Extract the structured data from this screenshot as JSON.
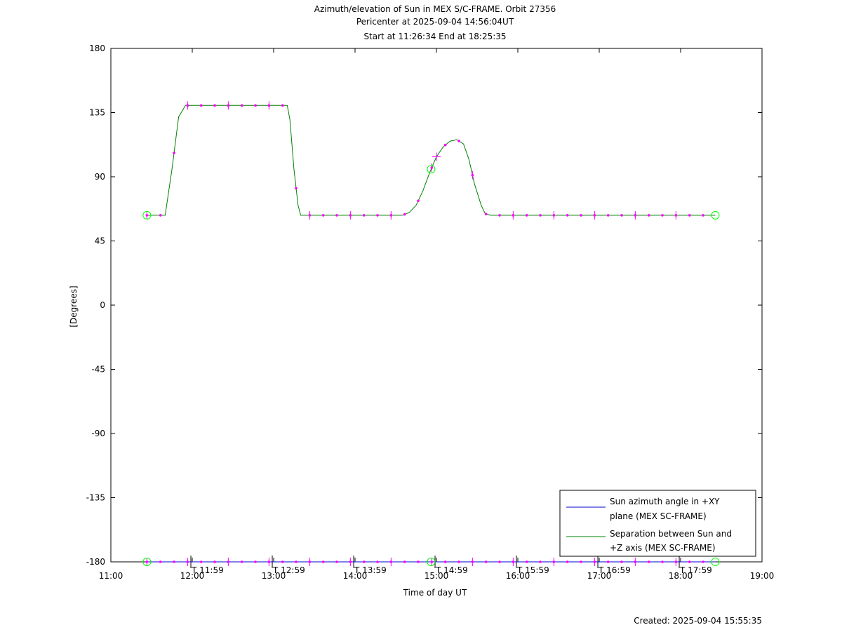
{
  "colors": {
    "azimuth": "#0000cc",
    "separation": "#008000",
    "marker": "#ff00ff",
    "highlight": "#00ff00",
    "axis": "#000000"
  },
  "chart_data": {
    "type": "line",
    "title_lines": [
      "Azimuth/elevation of Sun in MEX S/C-FRAME.  Orbit 27356",
      "Pericenter at 2025-09-04 14:56:04UT",
      "Start at 11:26:34 End at 18:25:35"
    ],
    "xlabel": "Time of day UT",
    "ylabel": "[Degrees]",
    "footer": "Created: 2025-09-04 15:55:35",
    "xlim": [
      11.0,
      19.0
    ],
    "ylim": [
      -180,
      180
    ],
    "x_ticks": [
      {
        "value": 11,
        "label": "11:00"
      },
      {
        "value": 12,
        "label": "12:00"
      },
      {
        "value": 13,
        "label": "13:00"
      },
      {
        "value": 14,
        "label": "14:00"
      },
      {
        "value": 15,
        "label": "15:00"
      },
      {
        "value": 16,
        "label": "16:00"
      },
      {
        "value": 17,
        "label": "17:00"
      },
      {
        "value": 18,
        "label": "18:00"
      },
      {
        "value": 19,
        "label": "19:00"
      }
    ],
    "y_ticks": [
      {
        "value": 180,
        "label": "180"
      },
      {
        "value": 135,
        "label": "135"
      },
      {
        "value": 90,
        "label": "90"
      },
      {
        "value": 45,
        "label": "45"
      },
      {
        "value": 0,
        "label": "0"
      },
      {
        "value": -45,
        "label": "-45"
      },
      {
        "value": -90,
        "label": "-90"
      },
      {
        "value": -135,
        "label": "-135"
      },
      {
        "value": -180,
        "label": "-180"
      }
    ],
    "time_markers": [
      {
        "value": 11.983,
        "label": "T 11:59"
      },
      {
        "value": 12.983,
        "label": "T 12:59"
      },
      {
        "value": 13.983,
        "label": "T 13:59"
      },
      {
        "value": 14.983,
        "label": "T 14:59"
      },
      {
        "value": 15.983,
        "label": "T 15:59"
      },
      {
        "value": 16.983,
        "label": "T 16:59"
      },
      {
        "value": 17.983,
        "label": "T 17:59"
      }
    ],
    "series": [
      {
        "name": "Sun azimuth angle in +XY plane (MEX SC-FRAME)",
        "legend_lines": [
          "Sun azimuth angle in +XY",
          "plane (MEX SC-FRAME)"
        ],
        "x": [
          11.4428,
          18.4264
        ],
        "y": [
          -180,
          -180
        ]
      },
      {
        "name": "Separation between Sun and +Z axis (MEX SC-FRAME)",
        "legend_lines": [
          "Separation between Sun and",
          "+Z axis (MEX SC-FRAME)"
        ],
        "x": [
          11.4428,
          11.667,
          11.75,
          11.833,
          11.917,
          12.0,
          12.167,
          12.333,
          12.5,
          12.667,
          12.833,
          13.0,
          13.167,
          13.2,
          13.25,
          13.3,
          13.333,
          13.367,
          13.5,
          13.667,
          13.833,
          14.0,
          14.167,
          14.333,
          14.5,
          14.583,
          14.667,
          14.75,
          14.833,
          14.917,
          15.0,
          15.083,
          15.167,
          15.25,
          15.333,
          15.4,
          15.467,
          15.55,
          15.6,
          15.667,
          15.833,
          16.0,
          16.167,
          16.333,
          16.5,
          16.667,
          16.833,
          17.0,
          17.167,
          17.333,
          17.5,
          17.667,
          17.833,
          18.0,
          18.167,
          18.333,
          18.4264
        ],
        "y": [
          63,
          63,
          95,
          132,
          140,
          140,
          140,
          140,
          140,
          140,
          140,
          140,
          140,
          130,
          95,
          70,
          63,
          63,
          63,
          63,
          63,
          63,
          63,
          63,
          63,
          63,
          65,
          70,
          80,
          93,
          104,
          111,
          115,
          116,
          113,
          102,
          85,
          70,
          64,
          63,
          63,
          63,
          63,
          63,
          63,
          63,
          63,
          63,
          63,
          63,
          63,
          63,
          63,
          63,
          63,
          63,
          63
        ]
      }
    ],
    "grid": false,
    "legend_position": "bottom-right"
  }
}
